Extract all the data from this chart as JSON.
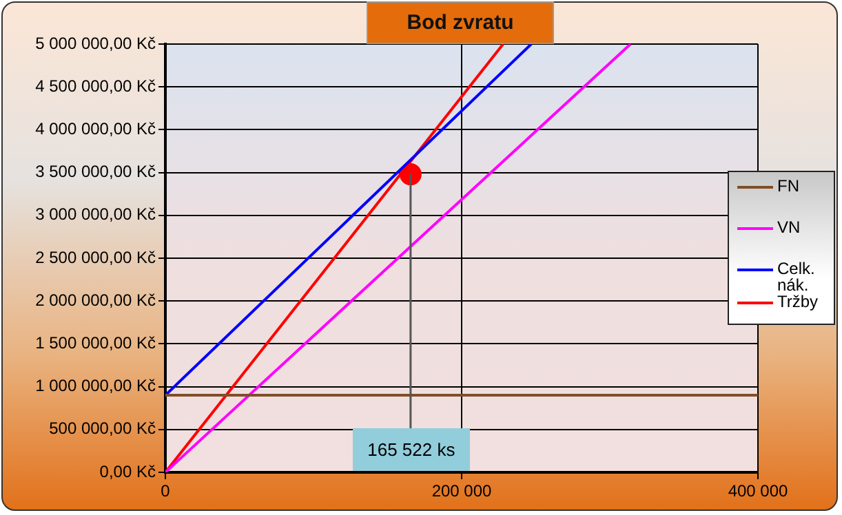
{
  "chart_data": {
    "type": "line",
    "title": "Bod zvratu",
    "xlim": [
      0,
      400000
    ],
    "xticks": [
      {
        "value": 0,
        "label": "0"
      },
      {
        "value": 200000,
        "label": "200 000"
      },
      {
        "value": 400000,
        "label": "400 000"
      }
    ],
    "ylim": [
      0,
      5000000
    ],
    "yticks": [
      {
        "value": 0,
        "label": "0,00 Kč"
      },
      {
        "value": 500000,
        "label": "500 000,00 Kč"
      },
      {
        "value": 1000000,
        "label": "1 000 000,00 Kč"
      },
      {
        "value": 1500000,
        "label": "1 500 000,00 Kč"
      },
      {
        "value": 2000000,
        "label": "2 000 000,00 Kč"
      },
      {
        "value": 2500000,
        "label": "2 500 000,00 Kč"
      },
      {
        "value": 3000000,
        "label": "3 000 000,00 Kč"
      },
      {
        "value": 3500000,
        "label": "3 500 000,00 Kč"
      },
      {
        "value": 4000000,
        "label": "4 000 000,00 Kč"
      },
      {
        "value": 4500000,
        "label": "4 500 000,00 Kč"
      },
      {
        "value": 5000000,
        "label": "5 000 000,00 Kč"
      }
    ],
    "series": [
      {
        "name": "FN",
        "color": "#7f4f28",
        "x": [
          0,
          400000
        ],
        "values": [
          900000,
          900000
        ]
      },
      {
        "name": "VN",
        "color": "#ff00ff",
        "x": [
          0,
          314000
        ],
        "values": [
          0,
          5000000
        ]
      },
      {
        "name": "Celk. nák.",
        "color": "#0000ff",
        "x": [
          0,
          247000
        ],
        "values": [
          900000,
          5000000
        ]
      },
      {
        "name": "Tržby",
        "color": "#ff0000",
        "x": [
          0,
          228000
        ],
        "values": [
          0,
          5000000
        ]
      },
      {
        "type": "scatter",
        "color": "#ff0000",
        "x": [
          165522
        ],
        "values": [
          3480000
        ]
      }
    ],
    "annotations": [
      {
        "text": "165 522 ks",
        "x": 165522,
        "y": 3480000
      }
    ],
    "grid": true,
    "legend": "right",
    "line_style": "solid"
  }
}
